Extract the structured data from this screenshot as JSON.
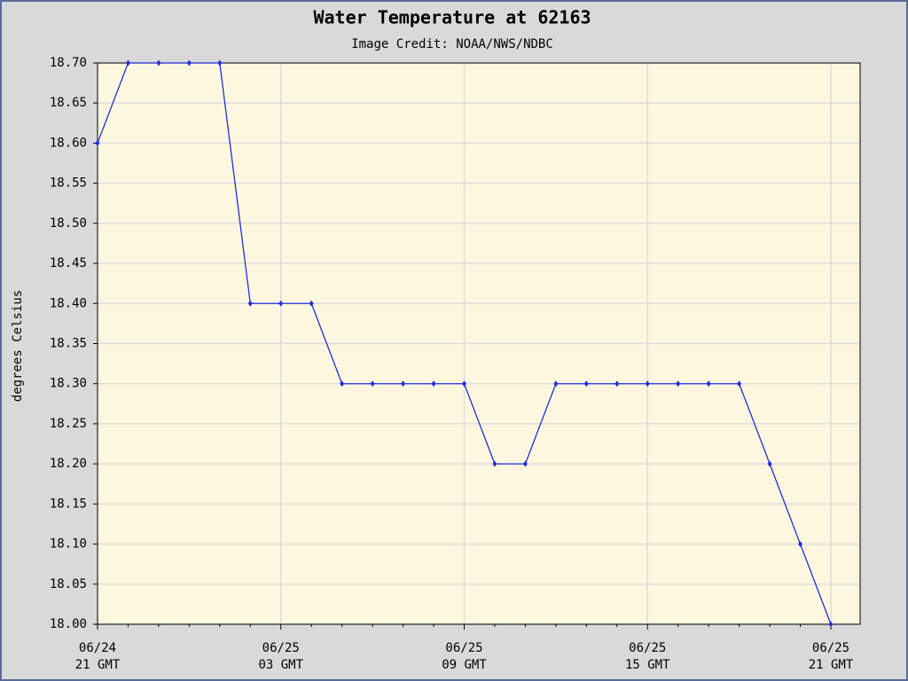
{
  "chart_data": {
    "type": "line",
    "title": "Water Temperature at 62163",
    "subtitle": "Image Credit: NOAA/NWS/NDBC",
    "y_label": "degrees Celsius",
    "categories": [
      [
        "06/24",
        "21 GMT"
      ],
      null,
      null,
      null,
      null,
      null,
      [
        "06/25",
        "03 GMT"
      ],
      null,
      null,
      null,
      null,
      null,
      [
        "06/25",
        "09 GMT"
      ],
      null,
      null,
      null,
      null,
      null,
      [
        "06/25",
        "15 GMT"
      ],
      null,
      null,
      null,
      null,
      null,
      [
        "06/25",
        "21 GMT"
      ]
    ],
    "series": [
      {
        "color": "#1f2fd6",
        "values": [
          18.6,
          18.7,
          18.7,
          18.7,
          18.7,
          18.4,
          18.4,
          18.4,
          18.3,
          18.3,
          18.3,
          18.3,
          18.3,
          18.2,
          18.2,
          18.3,
          18.3,
          18.3,
          18.3,
          18.3,
          18.3,
          18.3,
          18.2,
          18.1,
          18.0
        ]
      }
    ],
    "ylim": [
      18.0,
      18.7
    ],
    "yticks": [
      {
        "value": 18.0,
        "label": "18.00"
      },
      {
        "value": 18.05,
        "label": "18.05"
      },
      {
        "value": 18.1,
        "label": "18.10"
      },
      {
        "value": 18.15,
        "label": "18.15"
      },
      {
        "value": 18.2,
        "label": "18.20"
      },
      {
        "value": 18.25,
        "label": "18.25"
      },
      {
        "value": 18.3,
        "label": "18.30"
      },
      {
        "value": 18.35,
        "label": "18.35"
      },
      {
        "value": 18.4,
        "label": "18.40"
      },
      {
        "value": 18.45,
        "label": "18.45"
      },
      {
        "value": 18.5,
        "label": "18.50"
      },
      {
        "value": 18.55,
        "label": "18.55"
      },
      {
        "value": 18.6,
        "label": "18.60"
      },
      {
        "value": 18.65,
        "label": "18.65"
      },
      {
        "value": 18.7,
        "label": "18.70"
      }
    ],
    "grid": true
  }
}
